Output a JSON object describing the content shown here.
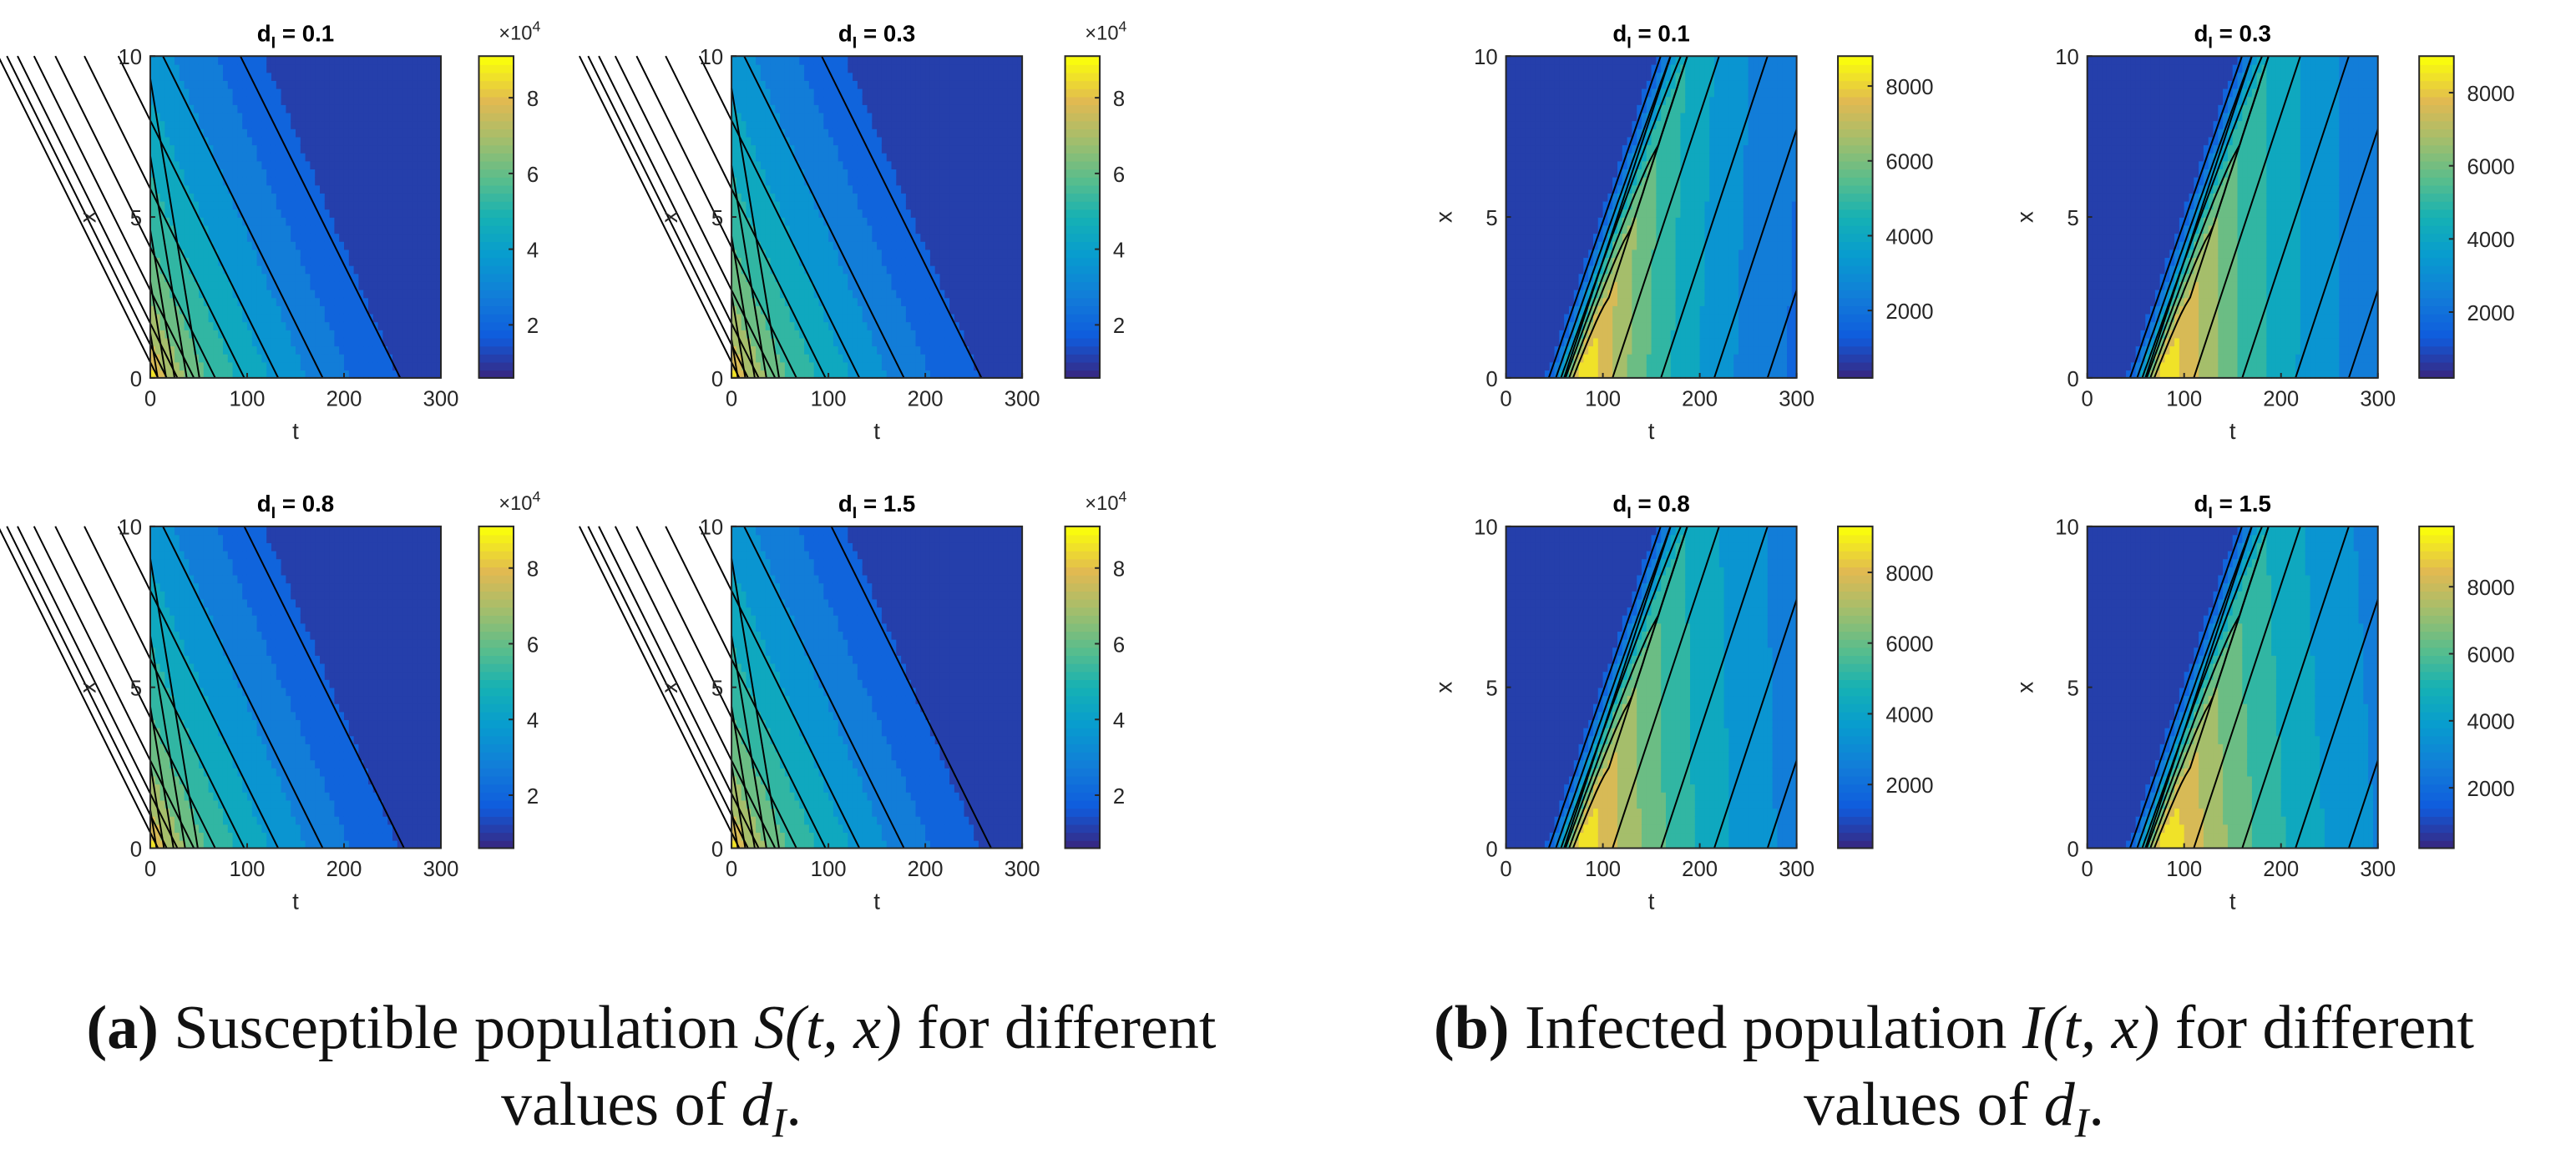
{
  "figure": {
    "caption_a": {
      "label": "(a)",
      "line1_text": "Susceptible population",
      "line1_math": "S(t, x)",
      "line1_tail": "for different",
      "line2_text": "values of",
      "line2_math_base": "d",
      "line2_math_sub": "I",
      "line2_end": "."
    },
    "caption_b": {
      "label": "(b)",
      "line1_text": "Infected population",
      "line1_math": "I(t, x)",
      "line1_tail": "for different",
      "line2_text": "values of",
      "line2_math_base": "d",
      "line2_math_sub": "I",
      "line2_end": "."
    }
  },
  "chart_data": [
    {
      "type": "heatmap",
      "id": "S-a",
      "group": "susceptible",
      "title_base": "d",
      "title_sub": "I",
      "title_value": "= 0.1",
      "xlabel": "t",
      "ylabel": "x",
      "xlim": [
        0,
        300
      ],
      "ylim": [
        0,
        10
      ],
      "xticks": [
        "0",
        "100",
        "200",
        "300"
      ],
      "yticks": [
        "0",
        "5",
        "10"
      ],
      "colorbar": {
        "min": 0.6,
        "max": 9.1,
        "ticks": [
          "2",
          "4",
          "6",
          "8"
        ],
        "tick_values": [
          2,
          4,
          6,
          8
        ],
        "exponent_label": "×10",
        "exponent_power": "4"
      },
      "contour_intercepts_t0": [
        1.4,
        3.0,
        4.6,
        6.9,
        9.3
      ],
      "contour_intercepts_x0": [
        8,
        17,
        28,
        45,
        67,
        97,
        132,
        178,
        258
      ],
      "contour_slope": 0.25
    },
    {
      "type": "heatmap",
      "id": "S-b",
      "group": "susceptible",
      "title_base": "d",
      "title_sub": "I",
      "title_value": "= 0.3",
      "xlabel": "t",
      "ylabel": "x",
      "xlim": [
        0,
        300
      ],
      "ylim": [
        0,
        10
      ],
      "xticks": [
        "0",
        "100",
        "200",
        "300"
      ],
      "yticks": [
        "0",
        "5",
        "10"
      ],
      "colorbar": {
        "min": 0.6,
        "max": 9.1,
        "ticks": [
          "2",
          "4",
          "6",
          "8"
        ],
        "tick_values": [
          2,
          4,
          6,
          8
        ],
        "exponent_label": "×10",
        "exponent_power": "4"
      },
      "contour_intercepts_t0": [
        1.2,
        2.6,
        4.4,
        6.6,
        9.0
      ],
      "contour_intercepts_x0": [
        8,
        17,
        28,
        45,
        67,
        97,
        132,
        178,
        258
      ],
      "contour_slope": 0.25
    },
    {
      "type": "heatmap",
      "id": "S-c",
      "group": "susceptible",
      "title_base": "d",
      "title_sub": "I",
      "title_value": "= 0.8",
      "xlabel": "t",
      "ylabel": "x",
      "xlim": [
        0,
        300
      ],
      "ylim": [
        0,
        10
      ],
      "xticks": [
        "0",
        "100",
        "200",
        "300"
      ],
      "yticks": [
        "0",
        "5",
        "10"
      ],
      "colorbar": {
        "min": 0.6,
        "max": 9.1,
        "ticks": [
          "2",
          "4",
          "6",
          "8"
        ],
        "tick_values": [
          2,
          4,
          6,
          8
        ],
        "exponent_label": "×10",
        "exponent_power": "4"
      },
      "contour_intercepts_t0": [
        1.2,
        2.6,
        4.4,
        6.6,
        9.0
      ],
      "contour_intercepts_x0": [
        8,
        17,
        28,
        45,
        67,
        97,
        132,
        178,
        262
      ],
      "contour_slope": 0.25
    },
    {
      "type": "heatmap",
      "id": "S-d",
      "group": "susceptible",
      "title_base": "d",
      "title_sub": "I",
      "title_value": "= 1.5",
      "xlabel": "t",
      "ylabel": "x",
      "xlim": [
        0,
        300
      ],
      "ylim": [
        0,
        10
      ],
      "xticks": [
        "0",
        "100",
        "200",
        "300"
      ],
      "yticks": [
        "0",
        "5",
        "10"
      ],
      "colorbar": {
        "min": 0.6,
        "max": 9.1,
        "ticks": [
          "2",
          "4",
          "6",
          "8"
        ],
        "tick_values": [
          2,
          4,
          6,
          8
        ],
        "exponent_label": "×10",
        "exponent_power": "4"
      },
      "contour_intercepts_t0": [
        1.2,
        2.6,
        4.4,
        6.6,
        9.0
      ],
      "contour_intercepts_x0": [
        8,
        17,
        28,
        45,
        67,
        97,
        132,
        178,
        268
      ],
      "contour_slope": 0.25
    },
    {
      "type": "heatmap",
      "id": "I-a",
      "group": "infected",
      "title_base": "d",
      "title_sub": "I",
      "title_value": "= 0.1",
      "xlabel": "t",
      "ylabel": "x",
      "xlim": [
        0,
        300
      ],
      "ylim": [
        0,
        10
      ],
      "xticks": [
        "0",
        "100",
        "200",
        "300"
      ],
      "yticks": [
        "0",
        "5",
        "10"
      ],
      "colorbar": {
        "min": 200,
        "max": 8800,
        "ticks": [
          "2000",
          "4000",
          "6000",
          "8000"
        ],
        "tick_values": [
          2000,
          4000,
          6000,
          8000
        ]
      },
      "peak_t": 80,
      "amplitude": 8800,
      "t_scale": 26,
      "decay_scale": 130,
      "x_slope": 12
    },
    {
      "type": "heatmap",
      "id": "I-b",
      "group": "infected",
      "title_base": "d",
      "title_sub": "I",
      "title_value": "= 0.3",
      "xlabel": "t",
      "ylabel": "x",
      "xlim": [
        0,
        300
      ],
      "ylim": [
        0,
        10
      ],
      "xticks": [
        "0",
        "100",
        "200",
        "300"
      ],
      "yticks": [
        "0",
        "5",
        "10"
      ],
      "colorbar": {
        "min": 200,
        "max": 9000,
        "ticks": [
          "2000",
          "4000",
          "6000",
          "8000"
        ],
        "tick_values": [
          2000,
          4000,
          6000,
          8000
        ]
      },
      "peak_t": 80,
      "amplitude": 9000,
      "t_scale": 26,
      "decay_scale": 150,
      "x_slope": 12
    },
    {
      "type": "heatmap",
      "id": "I-c",
      "group": "infected",
      "title_base": "d",
      "title_sub": "I",
      "title_value": "= 0.8",
      "xlabel": "t",
      "ylabel": "x",
      "xlim": [
        0,
        300
      ],
      "ylim": [
        0,
        10
      ],
      "xticks": [
        "0",
        "100",
        "200",
        "300"
      ],
      "yticks": [
        "0",
        "5",
        "10"
      ],
      "colorbar": {
        "min": 200,
        "max": 9300,
        "ticks": [
          "2000",
          "4000",
          "6000",
          "8000"
        ],
        "tick_values": [
          2000,
          4000,
          6000,
          8000
        ]
      },
      "peak_t": 80,
      "amplitude": 9300,
      "t_scale": 26,
      "decay_scale": 165,
      "x_slope": 12
    },
    {
      "type": "heatmap",
      "id": "I-d",
      "group": "infected",
      "title_base": "d",
      "title_sub": "I",
      "title_value": "= 1.5",
      "xlabel": "t",
      "ylabel": "x",
      "xlim": [
        0,
        300
      ],
      "ylim": [
        0,
        10
      ],
      "xticks": [
        "0",
        "100",
        "200",
        "300"
      ],
      "yticks": [
        "0",
        "5",
        "10"
      ],
      "colorbar": {
        "min": 200,
        "max": 9800,
        "ticks": [
          "2000",
          "4000",
          "6000",
          "8000"
        ],
        "tick_values": [
          2000,
          4000,
          6000,
          8000
        ]
      },
      "peak_t": 80,
      "amplitude": 9800,
      "t_scale": 26,
      "decay_scale": 180,
      "x_slope": 12
    }
  ]
}
